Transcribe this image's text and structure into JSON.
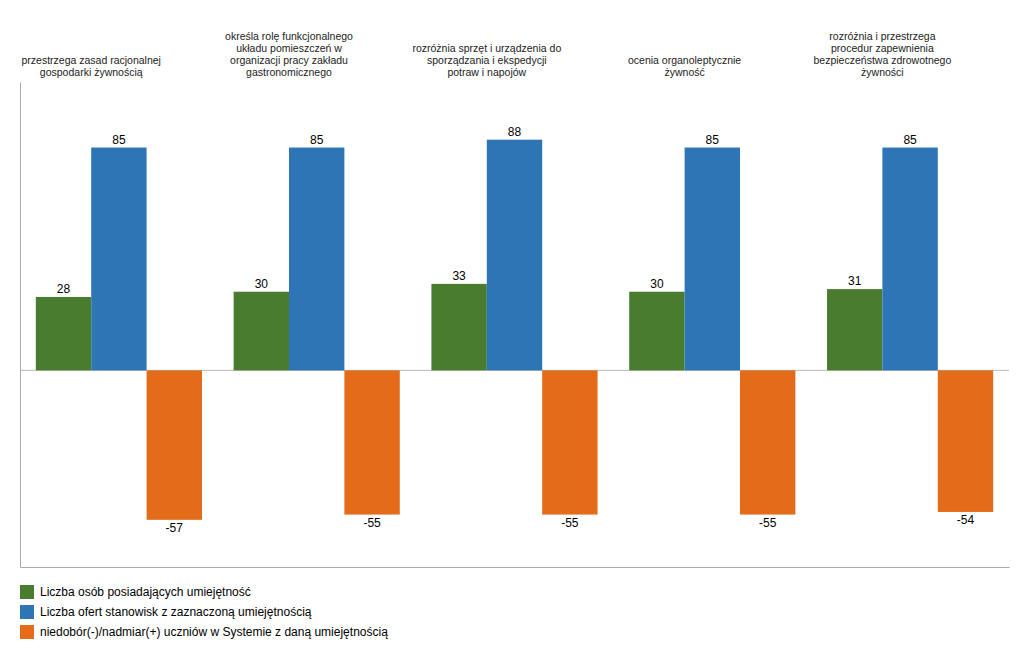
{
  "chart_data": {
    "type": "bar",
    "categories": [
      "przestrzega zasad racjonalnej\ngospodarki żywnością",
      "określa rolę funkcjonalnego\nukładu pomieszczeń w\norganizacji pracy zakładu\ngastronomicznego",
      "rozróżnia sprzęt i urządzenia do\nsporządzania i ekspedycji\npotraw i napojów",
      "ocenia organoleptycznie\nżywność",
      "rozróżnia i przestrzega\nprocedur zapewnienia\nbezpieczeństwa zdrowotnego\nżywności"
    ],
    "series": [
      {
        "name": "Liczba osób posiadających umiejętność",
        "color": "#4a7c2f",
        "values": [
          28,
          30,
          33,
          30,
          31
        ]
      },
      {
        "name": "Liczba ofert stanowisk z zaznaczoną umiejętnością",
        "color": "#2e75b6",
        "values": [
          85,
          85,
          88,
          85,
          85
        ]
      },
      {
        "name": "niedobór(-)/nadmiar(+) uczniów w Systemie z daną umiejętnością",
        "color": "#e36b1a",
        "values": [
          -57,
          -55,
          -55,
          -55,
          -54
        ]
      }
    ],
    "ylim": [
      -75,
      110
    ],
    "grid": false,
    "legend": "bottom",
    "data_labels": true,
    "tick_labels": false
  }
}
